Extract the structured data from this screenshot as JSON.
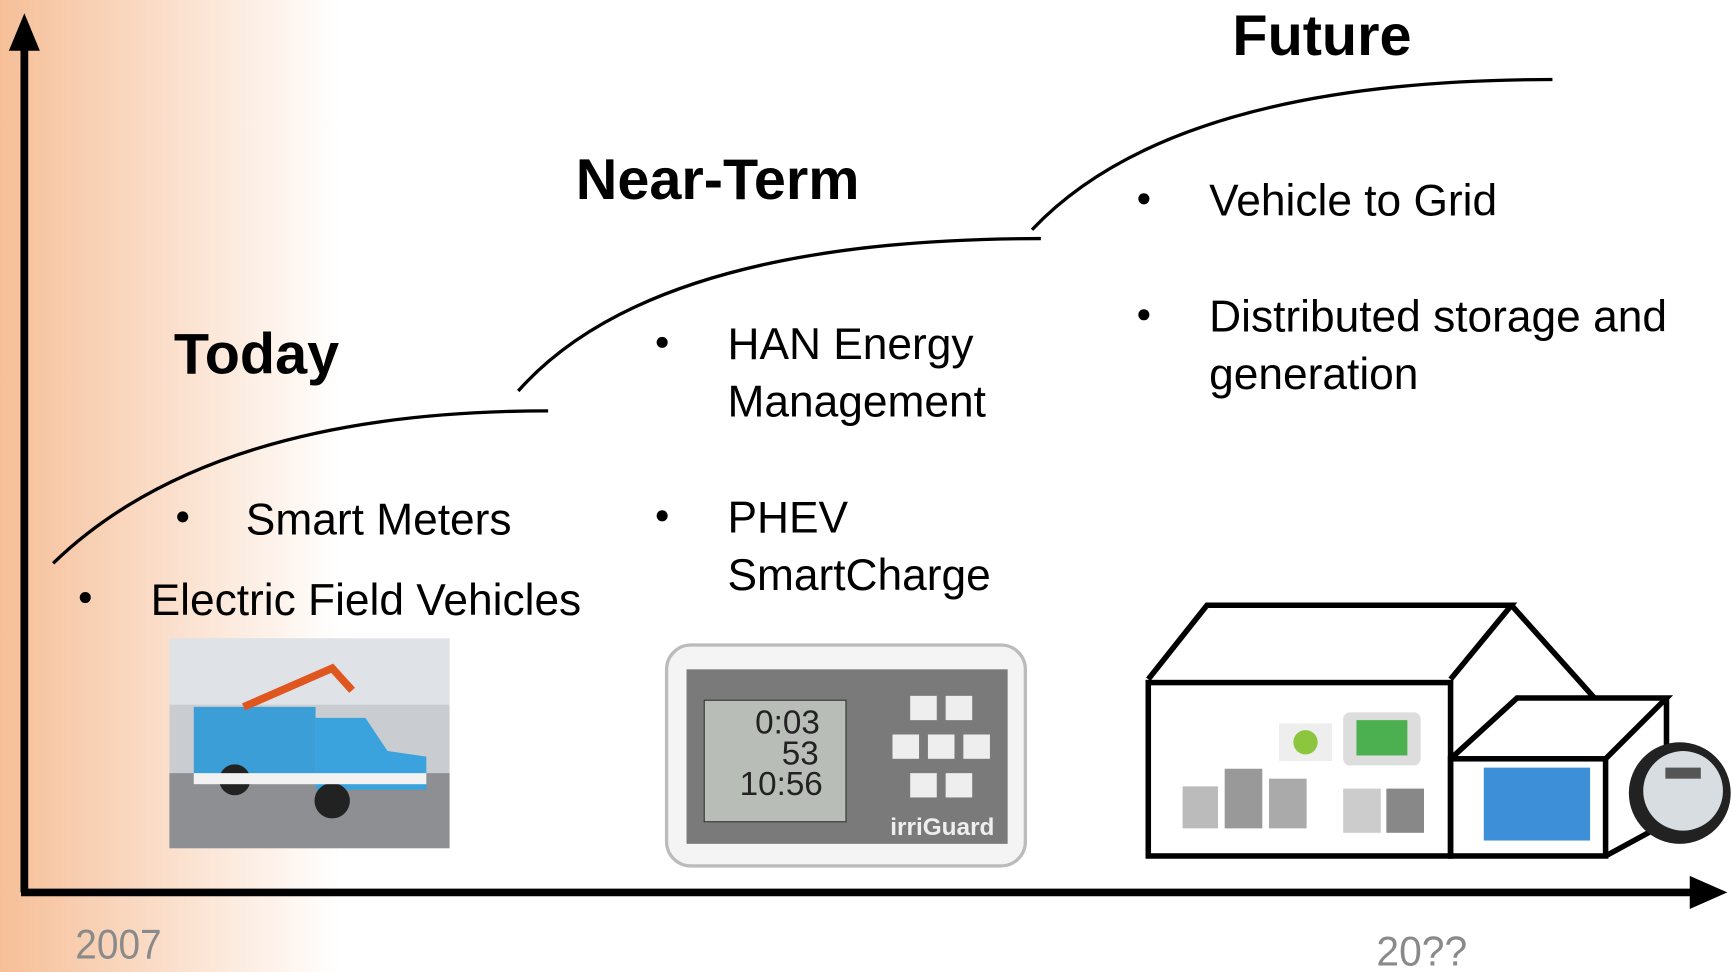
{
  "stages": [
    {
      "title": "Today",
      "bullets": [
        [
          "Smart Meters"
        ],
        [
          "Electric Field Vehicles"
        ]
      ]
    },
    {
      "title": "Near-Term",
      "bullets": [
        [
          "HAN Energy",
          "Management"
        ],
        [
          "PHEV",
          "SmartCharge"
        ]
      ]
    },
    {
      "title": "Future",
      "bullets": [
        [
          "Vehicle to Grid"
        ],
        [
          "Distributed storage and",
          "generation"
        ]
      ]
    }
  ],
  "device": {
    "display": [
      "0:03",
      "53",
      "10:56"
    ],
    "brand": "irriGuard"
  },
  "axis": {
    "start": "2007",
    "end": "20??"
  }
}
